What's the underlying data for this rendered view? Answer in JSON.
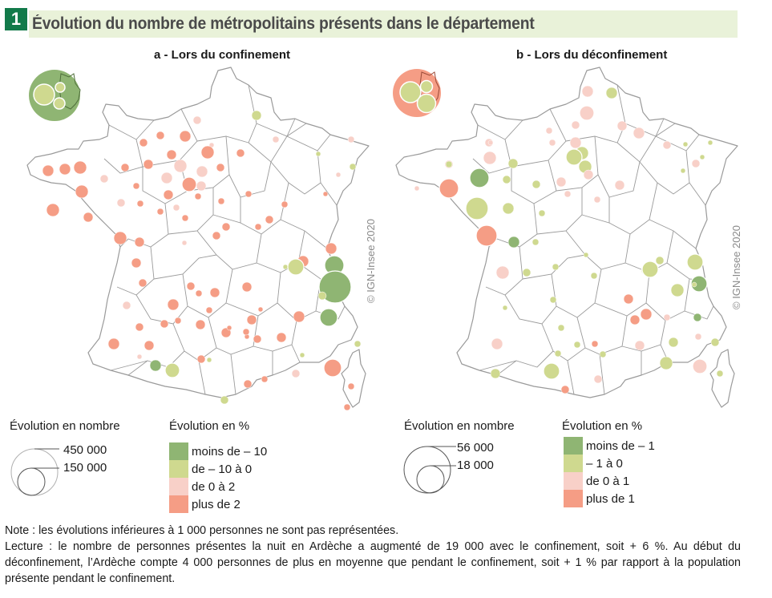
{
  "figure_number": "1",
  "title": "Évolution du nombre de métropolitains présents dans le département",
  "colors": {
    "title_badge": "#127a4a",
    "title_band": "#e9f2d9",
    "dark_green": "#8fb573",
    "light_green": "#cfd98f",
    "light_pink": "#f8d0c8",
    "salmon": "#f59d85",
    "border": "#9a9a9a"
  },
  "maps": [
    {
      "id": "a",
      "title": "a - Lors du confinement",
      "credit": "© IGN-Insee 2020",
      "inset_color": "dark_green",
      "legend_size": {
        "title": "Évolution en nombre",
        "large_value": "450 000",
        "small_value": "150 000"
      },
      "legend_color": {
        "title": "Évolution en %",
        "classes": [
          {
            "label": "moins de – 10",
            "color": "dark_green"
          },
          {
            "label": "de – 10 à 0",
            "color": "light_green"
          },
          {
            "label": "de 0 à 2",
            "color": "light_pink"
          },
          {
            "label": "plus de 2",
            "color": "salmon"
          }
        ]
      }
    },
    {
      "id": "b",
      "title": "b - Lors du déconfinement",
      "credit": "© IGN-Insee 2020",
      "inset_color": "salmon",
      "legend_size": {
        "title": "Évolution en nombre",
        "large_value": "56 000",
        "small_value": "18 000"
      },
      "legend_color": {
        "title": "Évolution en %",
        "classes": [
          {
            "label": "moins de – 1",
            "color": "dark_green"
          },
          {
            "label": "– 1 à 0",
            "color": "light_green"
          },
          {
            "label": "de 0 à 1",
            "color": "light_pink"
          },
          {
            "label": "plus de 1",
            "color": "salmon"
          }
        ]
      }
    }
  ],
  "notes": {
    "note": "Note : les évolutions inférieures à 1 000 personnes ne sont pas représentées.",
    "lecture": "Lecture : le nombre de personnes présentes la nuit en Ardèche a augmenté de 19 000 avec le confinement, soit + 6 %. Au début du déconfinement, l’Ardèche compte 4 000 personnes de plus en moyenne que pendant le confinement, soit + 1 % par rapport à la population présente pendant le confinement."
  }
}
